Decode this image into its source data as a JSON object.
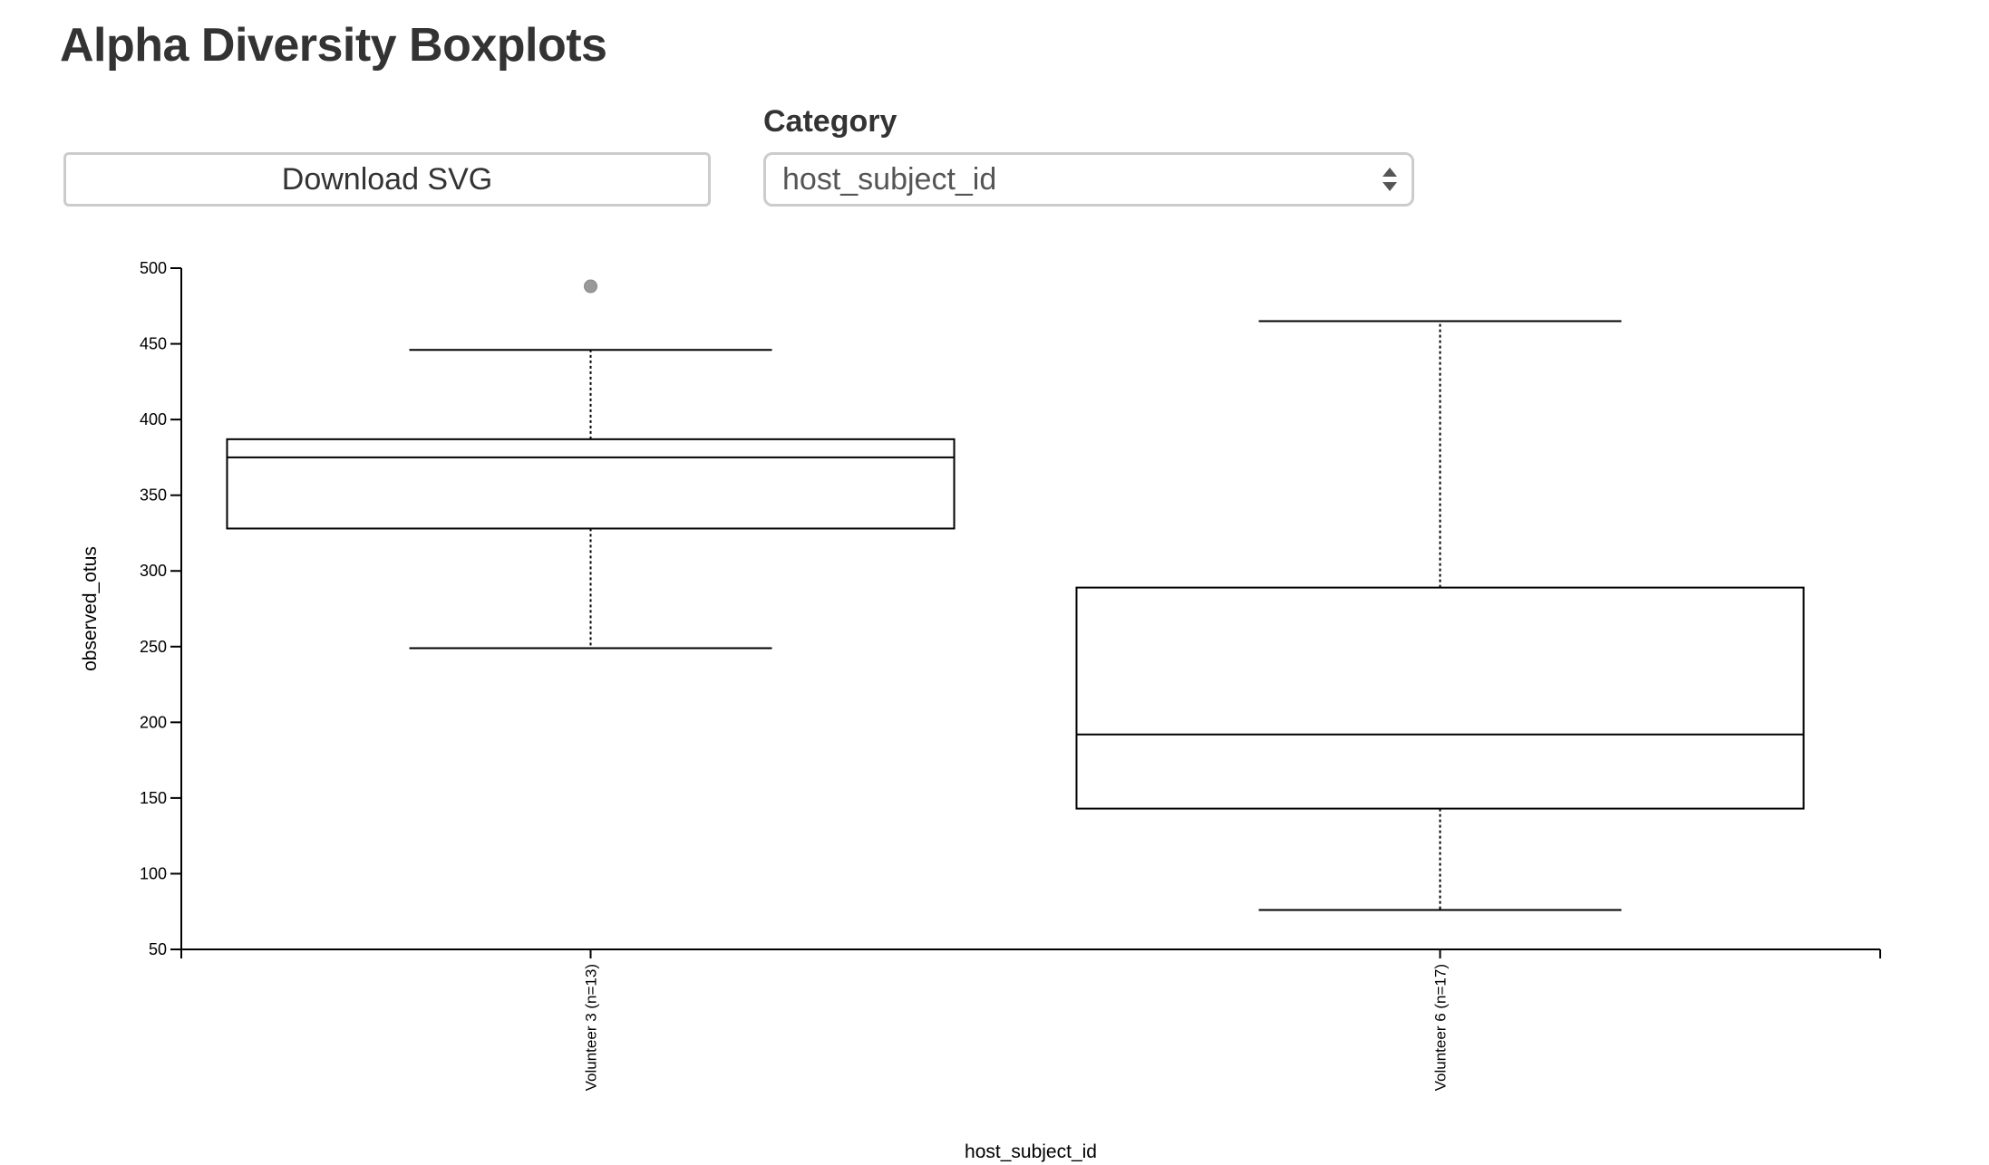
{
  "page": {
    "title": "Alpha Diversity Boxplots"
  },
  "controls": {
    "download_label": "Download SVG",
    "category_label": "Category",
    "category_value": "host_subject_id",
    "select_arrows_icon": "up-down-arrows-icon"
  },
  "chart_data": {
    "type": "boxplot",
    "xlabel": "host_subject_id",
    "ylabel": "observed_otus",
    "ylim": [
      50,
      500
    ],
    "yticks": [
      50,
      100,
      150,
      200,
      250,
      300,
      350,
      400,
      450,
      500
    ],
    "categories": [
      "Volunteer 3 (n=13)",
      "Volunteer 6 (n=17)"
    ],
    "boxes": [
      {
        "category": "Volunteer 3 (n=13)",
        "whisker_low": 249,
        "q1": 328,
        "median": 375,
        "q3": 387,
        "whisker_high": 446,
        "outliers": [
          488
        ]
      },
      {
        "category": "Volunteer 6 (n=17)",
        "whisker_low": 76,
        "q1": 143,
        "median": 192,
        "q3": 289,
        "whisker_high": 465,
        "outliers": []
      }
    ],
    "colors": {
      "axis": "#000000",
      "box_stroke": "#000000",
      "box_fill": "#ffffff",
      "outlier": "#999999"
    }
  }
}
